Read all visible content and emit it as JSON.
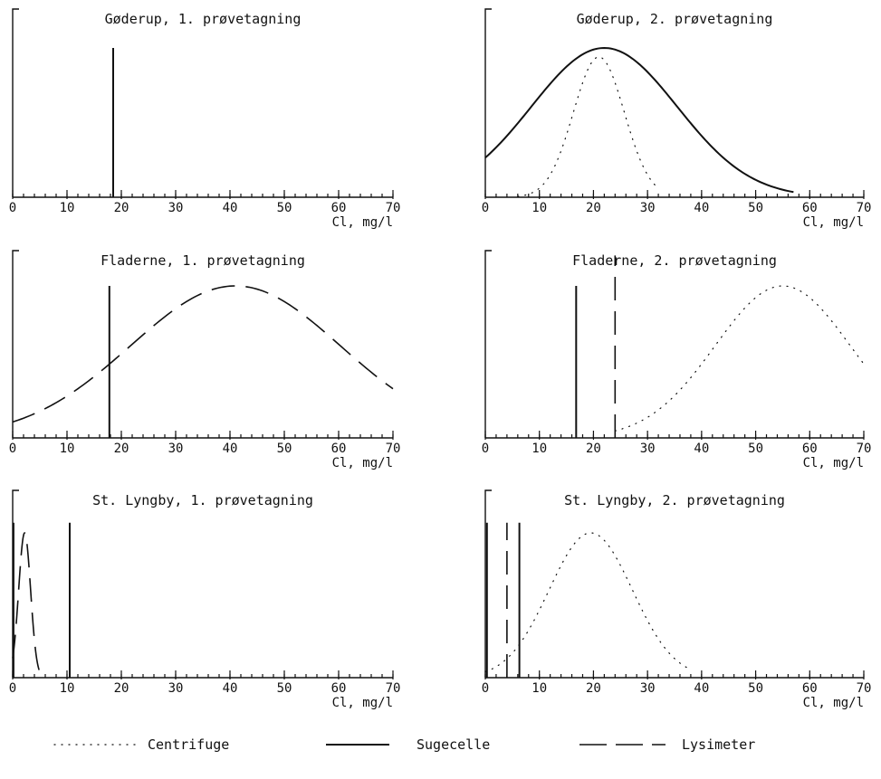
{
  "chart_data": [
    {
      "type": "line",
      "title": "Gøderup, 1. prøvetagning",
      "xlabel": "Cl, mg/l",
      "xlim": [
        0,
        70
      ],
      "xticks": [
        0,
        10,
        20,
        30,
        40,
        50,
        60,
        70
      ],
      "series": [
        {
          "name": "Sugecelle",
          "kind": "spike",
          "x": 18.5,
          "h": 1.0
        }
      ]
    },
    {
      "type": "line",
      "title": "Gøderup, 2. prøvetagning",
      "xlabel": "Cl, mg/l",
      "xlim": [
        0,
        70
      ],
      "xticks": [
        0,
        10,
        20,
        30,
        40,
        50,
        60,
        70
      ],
      "series": [
        {
          "name": "Sugecelle",
          "kind": "gauss",
          "mu": 22,
          "sigma": 13.5,
          "peak": 1.0,
          "x0": 0,
          "x1": 57
        },
        {
          "name": "Centrifuge",
          "kind": "gauss",
          "mu": 21,
          "sigma": 4.7,
          "peak": 0.94,
          "x0": 6,
          "x1": 32
        }
      ]
    },
    {
      "type": "line",
      "title": "Fladerne, 1. prøvetagning",
      "xlabel": "Cl, mg/l",
      "xlim": [
        0,
        70
      ],
      "xticks": [
        0,
        10,
        20,
        30,
        40,
        50,
        60,
        70
      ],
      "series": [
        {
          "name": "Sugecelle",
          "kind": "spike",
          "x": 17.8,
          "h": 1.0
        },
        {
          "name": "Lysimeter",
          "kind": "gauss",
          "mu": 41,
          "sigma": 19.3,
          "peak": 1.0,
          "x0": 0,
          "x1": 70
        }
      ]
    },
    {
      "type": "line",
      "title": "Fladerne, 2. prøvetagning",
      "xlabel": "Cl, mg/l",
      "xlim": [
        0,
        70
      ],
      "xticks": [
        0,
        10,
        20,
        30,
        40,
        50,
        60,
        70
      ],
      "series": [
        {
          "name": "Sugecelle",
          "kind": "spike",
          "x": 16.8,
          "h": 1.0
        },
        {
          "name": "Lysimeter",
          "kind": "spike",
          "x": 24,
          "h": 1.2
        },
        {
          "name": "Centrifuge",
          "kind": "gauss",
          "mu": 55,
          "sigma": 12.5,
          "peak": 1.0,
          "x0": 24,
          "x1": 70
        }
      ]
    },
    {
      "type": "line",
      "title": "St. Lyngby, 1. prøvetagning",
      "xlabel": "Cl, mg/l",
      "xlim": [
        0,
        70
      ],
      "xticks": [
        0,
        10,
        20,
        30,
        40,
        50,
        60,
        70
      ],
      "series": [
        {
          "name": "Lysimeter",
          "kind": "gauss",
          "mu": 2.2,
          "sigma": 1.1,
          "peak": 1.0,
          "x0": 0,
          "x1": 5.5
        },
        {
          "name": "Sugecelle",
          "kind": "spike",
          "x": 10.5,
          "h": 1.07
        },
        {
          "name": "Sugecelle",
          "kind": "spike",
          "x": 0.15,
          "h": 1.07
        }
      ]
    },
    {
      "type": "line",
      "title": "St. Lyngby, 2. prøvetagning",
      "xlabel": "Cl, mg/l",
      "xlim": [
        0,
        70
      ],
      "xticks": [
        0,
        10,
        20,
        30,
        40,
        50,
        60,
        70
      ],
      "series": [
        {
          "name": "Sugecelle",
          "kind": "spike",
          "x": 0.3,
          "h": 1.07
        },
        {
          "name": "Lysimeter",
          "kind": "spike",
          "x": 4,
          "h": 1.07
        },
        {
          "name": "Sugecelle",
          "kind": "spike",
          "x": 6.3,
          "h": 1.07
        },
        {
          "name": "Centrifuge",
          "kind": "gauss",
          "mu": 19.5,
          "sigma": 7.7,
          "peak": 1.0,
          "x0": 0,
          "x1": 38
        }
      ]
    }
  ],
  "legend": [
    {
      "label": "Centrifuge",
      "style": "dotted"
    },
    {
      "label": "Sugecelle",
      "style": "solid"
    },
    {
      "label": "Lysimeter",
      "style": "dashed"
    }
  ]
}
